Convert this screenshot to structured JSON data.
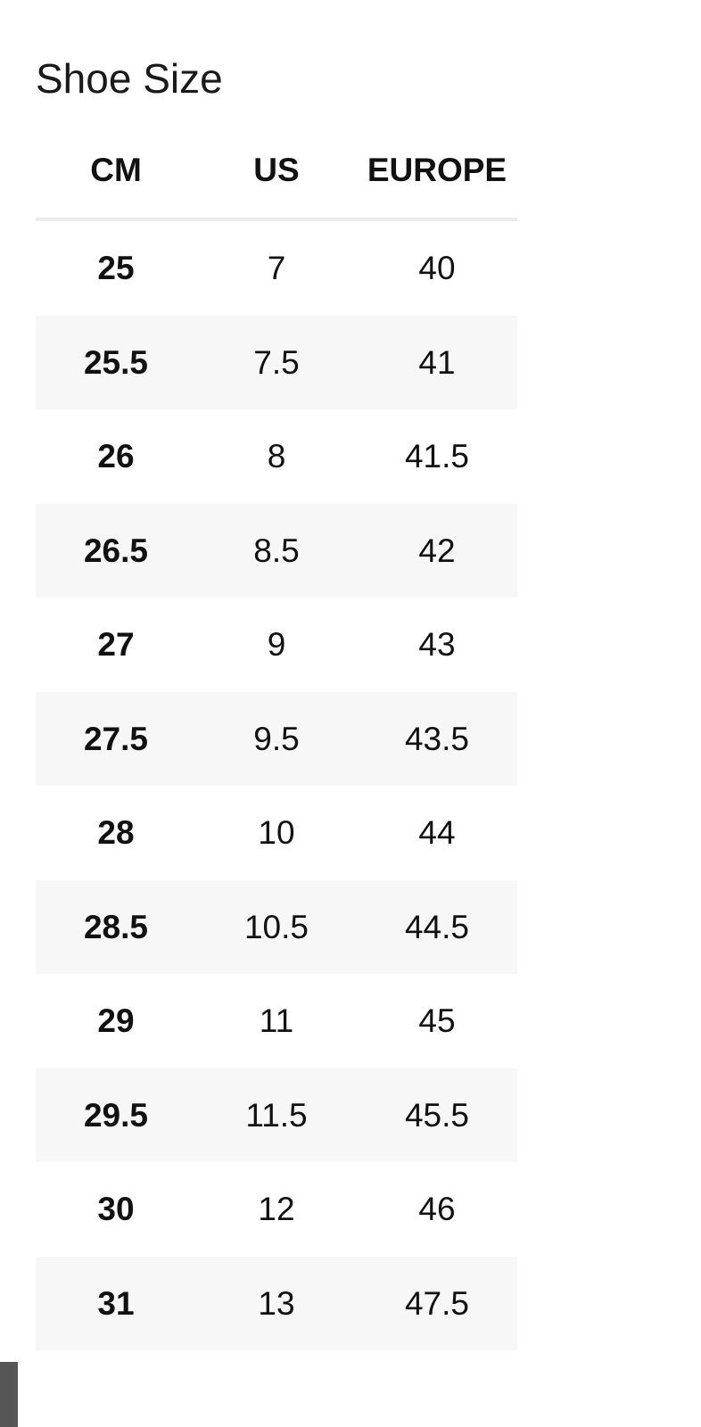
{
  "title": "Shoe Size",
  "table": {
    "headers": [
      "CM",
      "US",
      "EUROPE"
    ],
    "rows": [
      [
        "25",
        "7",
        "40"
      ],
      [
        "25.5",
        "7.5",
        "41"
      ],
      [
        "26",
        "8",
        "41.5"
      ],
      [
        "26.5",
        "8.5",
        "42"
      ],
      [
        "27",
        "9",
        "43"
      ],
      [
        "27.5",
        "9.5",
        "43.5"
      ],
      [
        "28",
        "10",
        "44"
      ],
      [
        "28.5",
        "10.5",
        "44.5"
      ],
      [
        "29",
        "11",
        "45"
      ],
      [
        "29.5",
        "11.5",
        "45.5"
      ],
      [
        "30",
        "12",
        "46"
      ],
      [
        "31",
        "13",
        "47.5"
      ]
    ]
  }
}
